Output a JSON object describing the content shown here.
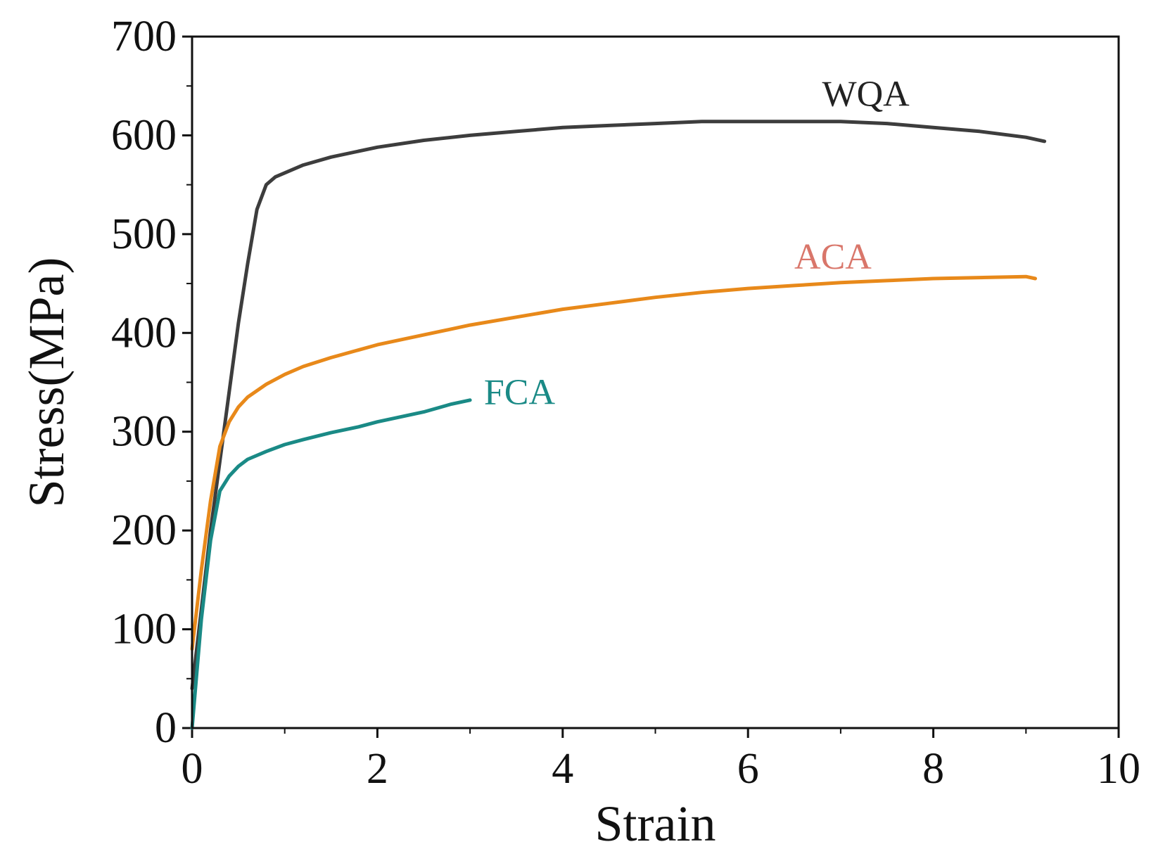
{
  "chart_data": {
    "type": "line",
    "title": "",
    "xlabel": "Strain",
    "ylabel": "Stress(MPa)",
    "xlim": [
      0,
      10
    ],
    "ylim": [
      0,
      700
    ],
    "xticks": [
      0,
      2,
      4,
      6,
      8,
      10
    ],
    "xtick_labels": [
      "0",
      "2",
      "4",
      "6",
      "8",
      "10"
    ],
    "yticks": [
      0,
      100,
      200,
      300,
      400,
      500,
      600,
      700
    ],
    "ytick_labels": [
      "0",
      "100",
      "200",
      "300",
      "400",
      "500",
      "600",
      "700"
    ],
    "grid": false,
    "legend": "inline labels",
    "series": [
      {
        "name": "WQA",
        "label": "WQA",
        "color": "#3d3d3d",
        "label_color": "#222222",
        "x": [
          0.0,
          0.1,
          0.2,
          0.3,
          0.4,
          0.5,
          0.6,
          0.7,
          0.8,
          0.9,
          1.0,
          1.2,
          1.5,
          2.0,
          2.5,
          3.0,
          3.5,
          4.0,
          4.5,
          5.0,
          5.5,
          6.0,
          6.5,
          7.0,
          7.5,
          8.0,
          8.5,
          9.0,
          9.2
        ],
        "y": [
          40,
          120,
          200,
          270,
          340,
          410,
          470,
          525,
          550,
          558,
          562,
          570,
          578,
          588,
          595,
          600,
          604,
          608,
          610,
          612,
          614,
          614,
          614,
          614,
          612,
          608,
          604,
          598,
          594
        ]
      },
      {
        "name": "ACA",
        "label": "ACA",
        "color": "#e8891a",
        "label_color": "#d9766a",
        "x": [
          0.0,
          0.1,
          0.2,
          0.3,
          0.4,
          0.5,
          0.6,
          0.8,
          1.0,
          1.2,
          1.5,
          2.0,
          2.5,
          3.0,
          3.5,
          4.0,
          4.5,
          5.0,
          5.5,
          6.0,
          6.5,
          7.0,
          7.5,
          8.0,
          8.5,
          9.0,
          9.1
        ],
        "y": [
          80,
          160,
          230,
          285,
          310,
          325,
          335,
          348,
          358,
          366,
          375,
          388,
          398,
          408,
          416,
          424,
          430,
          436,
          441,
          445,
          448,
          451,
          453,
          455,
          456,
          457,
          455
        ]
      },
      {
        "name": "FCA",
        "label": "FCA",
        "color": "#1a8a86",
        "label_color": "#1a8a86",
        "x": [
          0.0,
          0.1,
          0.2,
          0.3,
          0.4,
          0.5,
          0.6,
          0.8,
          1.0,
          1.2,
          1.5,
          1.8,
          2.0,
          2.2,
          2.5,
          2.8,
          3.0
        ],
        "y": [
          0,
          110,
          190,
          240,
          255,
          265,
          272,
          280,
          287,
          292,
          299,
          305,
          310,
          314,
          320,
          328,
          332
        ]
      }
    ]
  }
}
